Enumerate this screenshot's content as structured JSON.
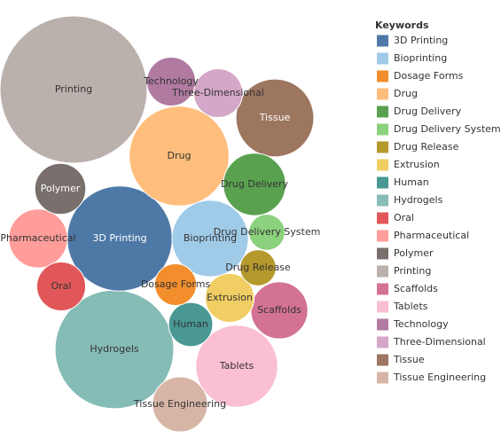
{
  "chart_data": {
    "type": "packed-bubble",
    "legend_title": "Keywords",
    "categories": [
      "3D Printing",
      "Bioprinting",
      "Dosage Forms",
      "Drug",
      "Drug Delivery",
      "Drug Delivery System",
      "Drug Release",
      "Extrusion",
      "Human",
      "Hydrogels",
      "Oral",
      "Pharmaceutical",
      "Polymer",
      "Printing",
      "Scaffolds",
      "Tablets",
      "Technology",
      "Three-Dimensional",
      "Tissue",
      "Tissue Engineering"
    ],
    "values": [
      51,
      27,
      8,
      46,
      18,
      6,
      6,
      11,
      9,
      65,
      11,
      16,
      12,
      100,
      15,
      31,
      11,
      11,
      28,
      14
    ],
    "colors": [
      "#4e79a7",
      "#a0cbe8",
      "#f28e2b",
      "#ffbe7d",
      "#59a14f",
      "#8cd17d",
      "#b6992d",
      "#f1ce63",
      "#499894",
      "#86bcb6",
      "#e15759",
      "#ff9d9a",
      "#79706e",
      "#bab0ac",
      "#d37295",
      "#fabfd2",
      "#b07aa1",
      "#d4a6c8",
      "#9d7660",
      "#d7b5a6"
    ],
    "legend_position": "right"
  }
}
